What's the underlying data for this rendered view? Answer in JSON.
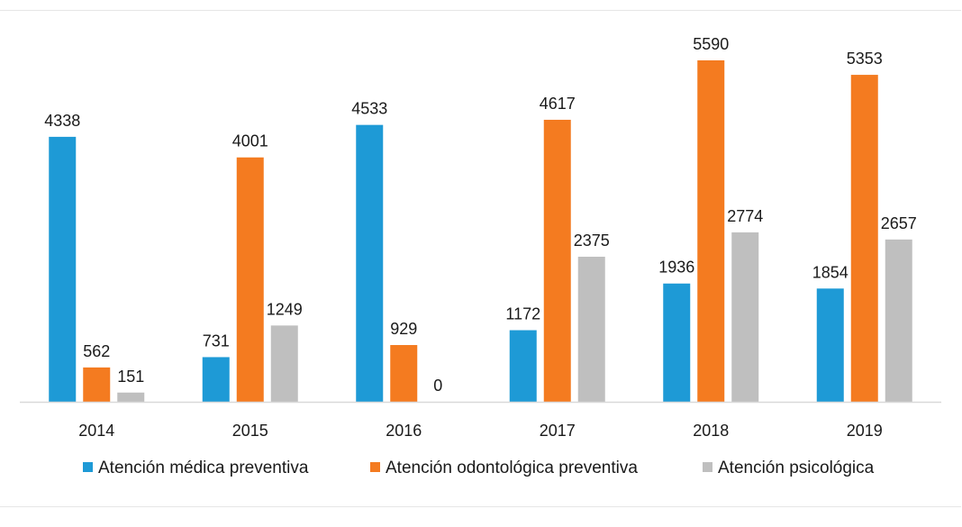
{
  "chart_data": {
    "type": "bar",
    "categories": [
      "2014",
      "2015",
      "2016",
      "2017",
      "2018",
      "2019"
    ],
    "series": [
      {
        "name": "Atención médica preventiva",
        "color": "#1e9ad6",
        "values": [
          4338,
          731,
          4533,
          1172,
          1936,
          1854
        ],
        "labels": [
          "4338",
          "731",
          "4533",
          "1172",
          "1936",
          "1854"
        ]
      },
      {
        "name": "Atención odontológica preventiva",
        "color": "#f47b20",
        "values": [
          562,
          4001,
          929,
          4617,
          5590,
          5353
        ],
        "labels": [
          "562",
          "4001",
          "929",
          "4617",
          "5590",
          "5353"
        ]
      },
      {
        "name": "Atención psicológica",
        "color": "#bfbfbf",
        "values": [
          151,
          1249,
          0,
          2375,
          2774,
          2657
        ],
        "labels": [
          "151",
          "1249",
          "0",
          "2375",
          "2774",
          "2657"
        ]
      }
    ],
    "ylim": [
      0,
      5800
    ],
    "grid": false,
    "legend_position": "bottom",
    "axis_color": "#d9d9d9"
  }
}
